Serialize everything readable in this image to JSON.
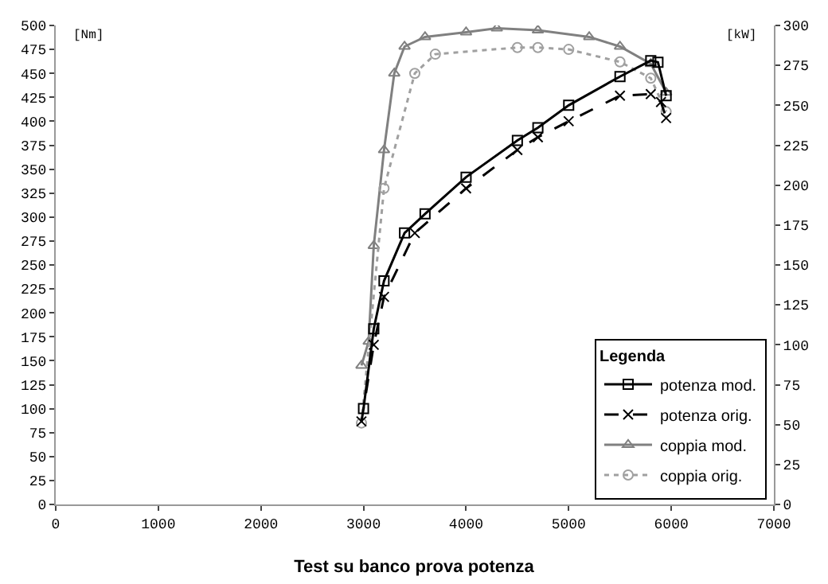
{
  "chart_data": {
    "type": "line",
    "title": "Test su banco prova potenza",
    "ylabel": "[Nm]",
    "y2label": "[kW]",
    "legend_title": "Legenda",
    "legend": "bottom right",
    "xlim": [
      0,
      7000
    ],
    "xticks": [
      0,
      1000,
      2000,
      3000,
      4000,
      5000,
      6000,
      7000
    ],
    "ylim": [
      0,
      500
    ],
    "yticks": [
      0,
      25,
      50,
      75,
      100,
      125,
      150,
      175,
      200,
      225,
      250,
      275,
      300,
      325,
      350,
      375,
      400,
      425,
      450,
      475,
      500
    ],
    "y2lim": [
      0,
      300
    ],
    "y2ticks": [
      0,
      25,
      50,
      75,
      100,
      125,
      150,
      175,
      200,
      225,
      250,
      275,
      300
    ],
    "series": [
      {
        "name": "potenza mod.",
        "axis": "y2",
        "color": "#000000",
        "marker": "square",
        "line_style": "solid",
        "x": [
          3000,
          3100,
          3200,
          3400,
          3600,
          4000,
          4500,
          4700,
          5000,
          5500,
          5800,
          5870,
          5950
        ],
        "values": [
          60,
          110,
          140,
          170,
          182,
          205,
          228,
          236,
          250,
          268,
          278,
          277,
          256
        ]
      },
      {
        "name": "potenza orig.",
        "axis": "y2",
        "color": "#000000",
        "marker": "cross",
        "line_style": "dashed",
        "x": [
          2980,
          3100,
          3200,
          3500,
          4000,
          4500,
          4700,
          5000,
          5500,
          5800,
          5900,
          5950
        ],
        "values": [
          52,
          100,
          130,
          170,
          198,
          222,
          230,
          240,
          256,
          257,
          252,
          242
        ]
      },
      {
        "name": "coppia mod.",
        "color": "#808080",
        "marker": "triangle",
        "line_style": "solid",
        "x": [
          2980,
          3050,
          3100,
          3200,
          3300,
          3400,
          3600,
          4000,
          4300,
          4700,
          5200,
          5500,
          5800,
          5950
        ],
        "values": [
          145,
          170,
          270,
          370,
          450,
          478,
          488,
          493,
          497,
          495,
          488,
          478,
          460,
          430
        ]
      },
      {
        "name": "coppia orig.",
        "color": "#a0a0a0",
        "marker": "circle",
        "line_style": "dotted",
        "x": [
          2980,
          3200,
          3500,
          3700,
          4500,
          4700,
          5000,
          5500,
          5800,
          5950
        ],
        "values": [
          85,
          330,
          450,
          470,
          477,
          477,
          475,
          462,
          445,
          410
        ]
      }
    ]
  }
}
